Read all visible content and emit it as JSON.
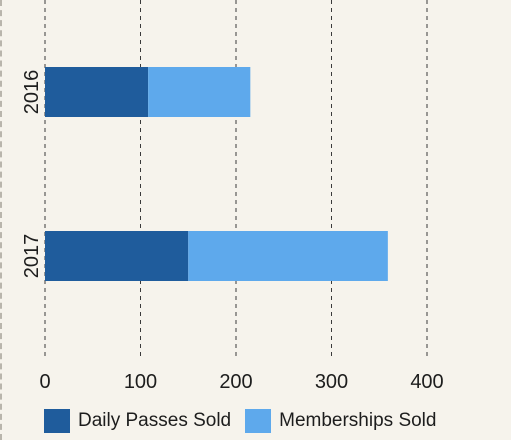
{
  "chart_data": {
    "type": "bar",
    "orientation": "horizontal",
    "stacked": true,
    "categories": [
      "2016",
      "2017"
    ],
    "series": [
      {
        "name": "Daily Passes Sold",
        "values": [
          108,
          150
        ],
        "color": "#1f5c9c"
      },
      {
        "name": "Memberships Sold",
        "values": [
          107,
          209
        ],
        "color": "#5ea9ec"
      }
    ],
    "xlim": [
      0,
      400
    ],
    "xticks": [
      "0",
      "100",
      "200",
      "300",
      "400"
    ],
    "grid": "vertical dashed",
    "legend_position": "bottom"
  }
}
